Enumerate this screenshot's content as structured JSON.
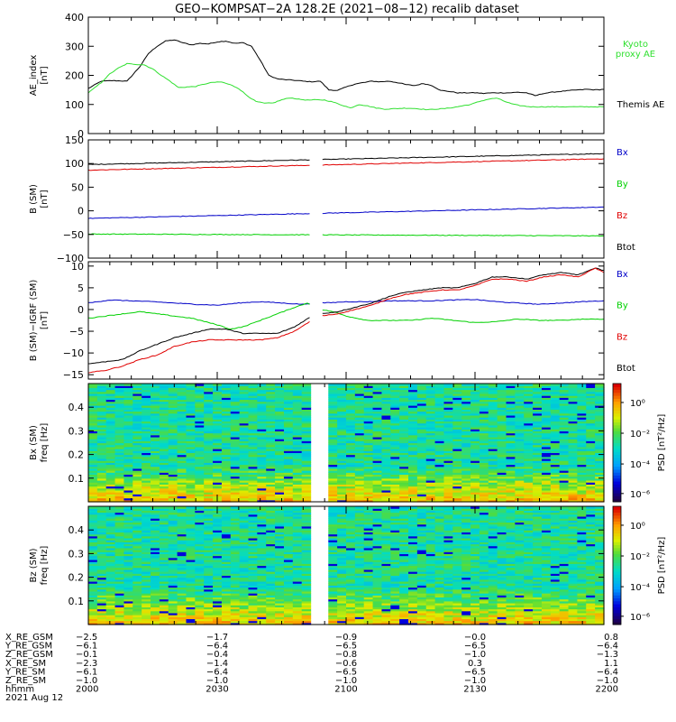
{
  "title": "GEO−KOMPSAT−2A 128.2E (2021−08−12) recalib dataset",
  "colors": {
    "black": "#000000",
    "blue": "#0000c8",
    "green": "#00d000",
    "red": "#e00000",
    "kyoto": "#30e030"
  },
  "chart_data": [
    {
      "panel": "ae_index",
      "type": "line",
      "ylabel": [
        "AE_index",
        "[nT]"
      ],
      "ylim": [
        0,
        400
      ],
      "yticks": [
        "0",
        "100",
        "200",
        "300",
        "400"
      ],
      "xlim": [
        0,
        120
      ],
      "series": [
        {
          "name": "Themis AE",
          "color": "black",
          "x": [
            0,
            3,
            6,
            9,
            12,
            14,
            16,
            18,
            20,
            22,
            24,
            26,
            28,
            30,
            32,
            34,
            36,
            38,
            40,
            42,
            44,
            46,
            48,
            50,
            52,
            54,
            56,
            58,
            60,
            62,
            64,
            66,
            68,
            70,
            72,
            74,
            76,
            78,
            80,
            82,
            84,
            86,
            88,
            90,
            92,
            94,
            96,
            98,
            100,
            102,
            104,
            106,
            108,
            110,
            112,
            114,
            116,
            118,
            120
          ],
          "y": [
            155,
            180,
            182,
            180,
            230,
            275,
            300,
            318,
            322,
            312,
            305,
            310,
            308,
            315,
            318,
            310,
            312,
            300,
            252,
            200,
            188,
            185,
            183,
            180,
            178,
            180,
            150,
            148,
            160,
            170,
            175,
            180,
            178,
            180,
            175,
            168,
            165,
            172,
            165,
            148,
            145,
            140,
            140,
            140,
            138,
            140,
            140,
            140,
            142,
            140,
            130,
            138,
            142,
            145,
            148,
            150,
            152,
            150,
            152
          ]
        },
        {
          "name": "Kyoto proxy AE",
          "color": "kyoto",
          "x": [
            0,
            3,
            5,
            7,
            9,
            11,
            13,
            15,
            17,
            19,
            21,
            23,
            25,
            27,
            29,
            31,
            33,
            35,
            37,
            39,
            41,
            43,
            45,
            47,
            49,
            51,
            53,
            55,
            57,
            59,
            61,
            63,
            65,
            67,
            69,
            71,
            73,
            75,
            77,
            79,
            81,
            83,
            85,
            87,
            89,
            91,
            93,
            95,
            97,
            99,
            101,
            103,
            105,
            107,
            110,
            114,
            120
          ],
          "y": [
            140,
            175,
            205,
            225,
            240,
            238,
            236,
            222,
            200,
            180,
            158,
            160,
            162,
            170,
            176,
            177,
            168,
            155,
            130,
            110,
            104,
            105,
            116,
            123,
            118,
            115,
            116,
            115,
            108,
            98,
            88,
            100,
            95,
            88,
            84,
            85,
            87,
            87,
            85,
            82,
            84,
            86,
            90,
            95,
            100,
            110,
            118,
            122,
            110,
            100,
            95,
            92,
            92,
            92,
            92,
            92,
            92
          ]
        }
      ],
      "legend": [
        {
          "text": "Kyoto",
          "color": "kyoto"
        },
        {
          "text": "proxy AE",
          "color": "kyoto"
        },
        {
          "text": "Themis AE",
          "color": "black"
        }
      ]
    },
    {
      "panel": "b_sm",
      "type": "line",
      "ylabel": [
        "B (SM)",
        "[nT]"
      ],
      "ylim": [
        -100,
        150
      ],
      "yticks": [
        "−100",
        "−50",
        "0",
        "50",
        "100",
        "150"
      ],
      "xlim": [
        0,
        120
      ],
      "gap": [
        52,
        54
      ],
      "series": [
        {
          "name": "Btot",
          "color": "black",
          "x": [
            0,
            120
          ],
          "y": [
            98,
            121
          ]
        },
        {
          "name": "Bz",
          "color": "red",
          "x": [
            0,
            120
          ],
          "y": [
            86,
            110
          ]
        },
        {
          "name": "Bx",
          "color": "blue",
          "x": [
            0,
            120
          ],
          "y": [
            -16,
            8
          ]
        },
        {
          "name": "By",
          "color": "green",
          "x": [
            0,
            60,
            120
          ],
          "y": [
            -49,
            -51,
            -53
          ]
        }
      ],
      "legend": [
        {
          "text": "Bx",
          "color": "blue"
        },
        {
          "text": "By",
          "color": "green"
        },
        {
          "text": "Bz",
          "color": "red"
        },
        {
          "text": "Btot",
          "color": "black"
        }
      ]
    },
    {
      "panel": "b_minus_igrf",
      "type": "line",
      "ylabel": [
        "B (SM)−IGRF (SM)",
        "[nT]"
      ],
      "ylim": [
        -16,
        11
      ],
      "yticks": [
        "−15",
        "−10",
        "−5",
        "0",
        "5",
        "10"
      ],
      "xlim": [
        0,
        120
      ],
      "gap": [
        52,
        54
      ],
      "series": [
        {
          "name": "Bx",
          "color": "blue",
          "x": [
            0,
            5,
            10,
            15,
            20,
            25,
            30,
            35,
            40,
            45,
            50,
            52,
            54,
            57,
            60,
            65,
            70,
            75,
            80,
            85,
            90,
            95,
            100,
            105,
            110,
            115,
            120
          ],
          "y": [
            1.5,
            2.2,
            2.0,
            1.8,
            1.5,
            1.2,
            1.0,
            1.5,
            1.8,
            1.5,
            1.2,
            1.5,
            1.5,
            1.6,
            1.8,
            1.8,
            2.0,
            2.0,
            2.0,
            2.2,
            2.3,
            1.8,
            1.5,
            1.2,
            1.5,
            1.8,
            2.0
          ]
        },
        {
          "name": "By",
          "color": "green",
          "x": [
            0,
            4,
            8,
            12,
            16,
            20,
            24,
            28,
            30,
            33,
            36,
            40,
            44,
            48,
            51,
            54,
            57,
            60,
            65,
            70,
            75,
            80,
            85,
            90,
            95,
            100,
            105,
            110,
            115,
            120
          ],
          "y": [
            -2,
            -1.5,
            -1,
            -0.5,
            -1,
            -1.5,
            -2,
            -3,
            -3.5,
            -4.5,
            -4,
            -2.5,
            -1,
            0.5,
            1.5,
            0,
            -0.5,
            -1.5,
            -2.5,
            -2.5,
            -2.5,
            -2,
            -2.5,
            -3,
            -2.8,
            -2.2,
            -2.5,
            -2.5,
            -2.2,
            -2.2
          ]
        },
        {
          "name": "Btot",
          "color": "black",
          "x": [
            0,
            4,
            8,
            12,
            16,
            20,
            24,
            28,
            32,
            36,
            40,
            44,
            48,
            52,
            54,
            58,
            62,
            66,
            70,
            74,
            78,
            82,
            86,
            90,
            94,
            98,
            102,
            106,
            110,
            114,
            118,
            120
          ],
          "y": [
            -12.5,
            -12,
            -11.5,
            -9.5,
            -8,
            -6.5,
            -5.5,
            -4.5,
            -4.5,
            -5.5,
            -5.5,
            -5.5,
            -4,
            -1.5,
            -1,
            -0.5,
            0.5,
            1.5,
            3,
            4,
            4.5,
            5,
            5,
            6,
            7.5,
            7.5,
            7,
            8,
            8.5,
            8,
            9.5,
            9
          ]
        },
        {
          "name": "Bz",
          "color": "red",
          "x": [
            0,
            4,
            8,
            12,
            16,
            20,
            24,
            28,
            32,
            36,
            40,
            44,
            48,
            52,
            54,
            58,
            62,
            66,
            70,
            74,
            78,
            82,
            86,
            90,
            94,
            98,
            102,
            106,
            110,
            114,
            118,
            120
          ],
          "y": [
            -14.5,
            -14,
            -13,
            -11.5,
            -10.5,
            -8.5,
            -7.5,
            -7,
            -7,
            -7,
            -7,
            -6.5,
            -5,
            -2.5,
            -1.5,
            -1,
            0,
            1,
            2.5,
            3.5,
            4,
            4.5,
            4.5,
            5.5,
            7,
            7,
            6.5,
            7.5,
            8,
            7.5,
            9.5,
            8.5
          ]
        }
      ],
      "legend": [
        {
          "text": "Bx",
          "color": "blue"
        },
        {
          "text": "By",
          "color": "green"
        },
        {
          "text": "Bz",
          "color": "red"
        },
        {
          "text": "Btot",
          "color": "black"
        }
      ]
    },
    {
      "panel": "bx_spectrogram",
      "type": "heatmap",
      "ylabel": [
        "Bx (SM)",
        "freq [Hz]"
      ],
      "ylim": [
        0,
        0.5
      ],
      "yticks": [
        "0.1",
        "0.2",
        "0.3",
        "0.4"
      ],
      "xlim": [
        0,
        120
      ],
      "gap": [
        52,
        56
      ],
      "colorbar": {
        "label": "PSD [nT²/Hz]",
        "ticks": [
          "10⁰",
          "10⁻²",
          "10⁻⁴",
          "10⁻⁶"
        ]
      }
    },
    {
      "panel": "bz_spectrogram",
      "type": "heatmap",
      "ylabel": [
        "Bz (SM)",
        "freq [Hz]"
      ],
      "ylim": [
        0,
        0.5
      ],
      "yticks": [
        "0.1",
        "0.2",
        "0.3",
        "0.4"
      ],
      "xlim": [
        0,
        120
      ],
      "gap": [
        52,
        56
      ],
      "colorbar": {
        "label": "PSD [nT²/Hz]",
        "ticks": [
          "10⁰",
          "10⁻²",
          "10⁻⁴",
          "10⁻⁶"
        ]
      }
    }
  ],
  "ephemeris": {
    "labels": [
      "X_RE_GSM",
      "Y_RE_GSM",
      "Z_RE_GSM",
      "X_RE_SM",
      "Y_RE_SM",
      "Z_RE_SM",
      "hhmm",
      "2021 Aug 12"
    ],
    "columns": [
      [
        "−2.5",
        "−6.1",
        "−0.1",
        "−2.3",
        "−6.1",
        "−1.0",
        "2000"
      ],
      [
        "−1.7",
        "−6.4",
        "−0.4",
        "−1.4",
        "−6.4",
        "−1.0",
        "2030"
      ],
      [
        "−0.9",
        "−6.5",
        "−0.8",
        "−0.6",
        "−6.5",
        "−1.0",
        "2100"
      ],
      [
        "−0.0",
        "−6.5",
        "−1.0",
        "0.3",
        "−6.5",
        "−1.0",
        "2130"
      ],
      [
        "0.8",
        "−6.4",
        "−1.3",
        "1.1",
        "−6.4",
        "−1.0",
        "2200"
      ]
    ]
  }
}
